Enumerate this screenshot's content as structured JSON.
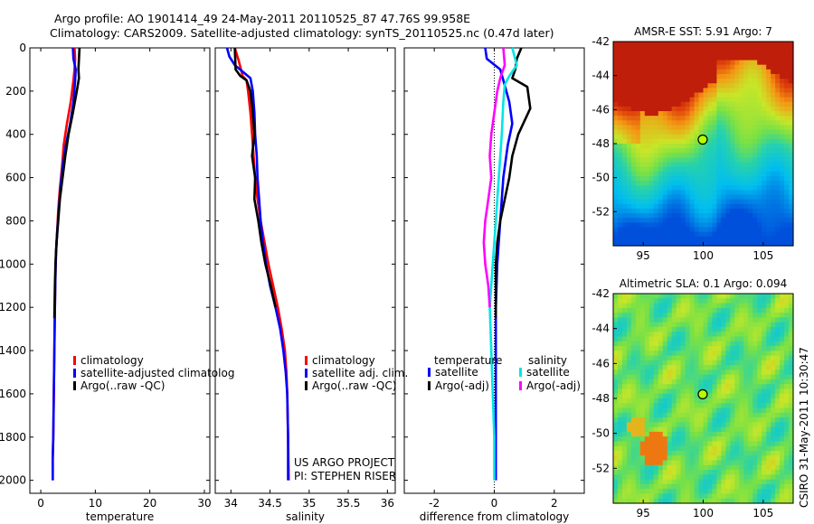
{
  "header": {
    "title_line1": "Argo profile: AO 1901414_49 24-May-2011 20110525_87 47.76S 99.958E",
    "title_line2": "Climatology: CARS2009. Satellite-adjusted climatology: synTS_20110525.nc (0.47d later)"
  },
  "credit": {
    "project": "US ARGO PROJECT",
    "pi": "PI: STEPHEN RISER",
    "stamp": "CSIRO 31-May-2011 10:30:47"
  },
  "colors": {
    "climatology": "#ff0000",
    "satellite": "#0000ff",
    "argo": "#000000",
    "salinity_satellite": "#00e5e5",
    "salinity_argo": "#ff00ff"
  },
  "chart_data": [
    {
      "type": "line",
      "id": "temperature",
      "xlabel": "temperature",
      "xlim": [
        -2,
        31
      ],
      "xticks": [
        0,
        10,
        20,
        30
      ],
      "ylim": [
        2060,
        0
      ],
      "yticks": [
        0,
        200,
        400,
        600,
        800,
        1000,
        1200,
        1400,
        1600,
        1800,
        2000
      ],
      "legend_position": "lower-left",
      "legend": [
        "climatology",
        "satellite-adjusted climatolog",
        "Argo(..raw -QC)"
      ],
      "series": [
        {
          "name": "climatology",
          "color": "#ff0000",
          "points": [
            [
              6.2,
              0
            ],
            [
              6.3,
              50
            ],
            [
              6.2,
              100
            ],
            [
              6.0,
              150
            ],
            [
              5.5,
              250
            ],
            [
              4.8,
              350
            ],
            [
              4.2,
              450
            ],
            [
              3.9,
              550
            ],
            [
              3.5,
              650
            ],
            [
              3.2,
              750
            ],
            [
              3.0,
              850
            ],
            [
              2.8,
              950
            ],
            [
              2.7,
              1050
            ],
            [
              2.6,
              1200
            ],
            [
              2.5,
              1400
            ],
            [
              2.4,
              1600
            ],
            [
              2.3,
              1800
            ],
            [
              2.2,
              1900
            ],
            [
              2.2,
              2000
            ]
          ]
        },
        {
          "name": "satellite-adjusted climatolog",
          "color": "#0000ff",
          "points": [
            [
              5.9,
              0
            ],
            [
              6.0,
              50
            ],
            [
              6.4,
              100
            ],
            [
              6.3,
              150
            ],
            [
              6.0,
              250
            ],
            [
              5.4,
              350
            ],
            [
              4.6,
              450
            ],
            [
              4.0,
              550
            ],
            [
              3.6,
              650
            ],
            [
              3.3,
              750
            ],
            [
              3.0,
              850
            ],
            [
              2.8,
              950
            ],
            [
              2.7,
              1050
            ],
            [
              2.6,
              1200
            ],
            [
              2.5,
              1400
            ],
            [
              2.4,
              1600
            ],
            [
              2.3,
              1800
            ],
            [
              2.2,
              1900
            ],
            [
              2.2,
              2000
            ]
          ]
        },
        {
          "name": "Argo(..raw -QC)",
          "color": "#000000",
          "points": [
            [
              7.1,
              0
            ],
            [
              7.0,
              50
            ],
            [
              6.9,
              100
            ],
            [
              7.0,
              140
            ],
            [
              6.6,
              200
            ],
            [
              5.9,
              300
            ],
            [
              5.1,
              400
            ],
            [
              4.5,
              500
            ],
            [
              4.0,
              600
            ],
            [
              3.5,
              700
            ],
            [
              3.2,
              800
            ],
            [
              2.9,
              900
            ],
            [
              2.7,
              1000
            ],
            [
              2.6,
              1100
            ],
            [
              2.5,
              1250
            ]
          ]
        }
      ]
    },
    {
      "type": "line",
      "id": "salinity",
      "xlabel": "salinity",
      "xlim": [
        33.8,
        36.1
      ],
      "xticks": [
        34,
        34.5,
        35,
        35.5,
        36
      ],
      "ylim": [
        2060,
        0
      ],
      "legend_position": "lower-left",
      "legend": [
        "climatology",
        "satellite adj. clim.",
        "Argo(..raw -QC)"
      ],
      "series": [
        {
          "name": "climatology",
          "color": "#ff0000",
          "points": [
            [
              34.05,
              0
            ],
            [
              34.1,
              60
            ],
            [
              34.15,
              130
            ],
            [
              34.2,
              150
            ],
            [
              34.22,
              200
            ],
            [
              34.25,
              300
            ],
            [
              34.27,
              400
            ],
            [
              34.29,
              500
            ],
            [
              34.31,
              600
            ],
            [
              34.34,
              700
            ],
            [
              34.38,
              800
            ],
            [
              34.43,
              900
            ],
            [
              34.48,
              1000
            ],
            [
              34.54,
              1100
            ],
            [
              34.6,
              1200
            ],
            [
              34.65,
              1300
            ],
            [
              34.69,
              1400
            ],
            [
              34.71,
              1500
            ],
            [
              34.72,
              1600
            ],
            [
              34.73,
              1800
            ],
            [
              34.74,
              2000
            ]
          ]
        },
        {
          "name": "satellite adj. clim.",
          "color": "#0000ff",
          "points": [
            [
              33.95,
              0
            ],
            [
              33.98,
              40
            ],
            [
              34.05,
              80
            ],
            [
              34.15,
              110
            ],
            [
              34.25,
              140
            ],
            [
              34.28,
              200
            ],
            [
              34.3,
              300
            ],
            [
              34.31,
              400
            ],
            [
              34.33,
              500
            ],
            [
              34.34,
              600
            ],
            [
              34.36,
              700
            ],
            [
              34.38,
              800
            ],
            [
              34.41,
              900
            ],
            [
              34.45,
              1000
            ],
            [
              34.5,
              1100
            ],
            [
              34.57,
              1200
            ],
            [
              34.63,
              1300
            ],
            [
              34.67,
              1400
            ],
            [
              34.7,
              1500
            ],
            [
              34.72,
              1600
            ],
            [
              34.73,
              1800
            ],
            [
              34.73,
              2000
            ]
          ]
        },
        {
          "name": "Argo(..raw -QC)",
          "color": "#000000",
          "points": [
            [
              34.05,
              0
            ],
            [
              34.06,
              100
            ],
            [
              34.12,
              130
            ],
            [
              34.2,
              150
            ],
            [
              34.25,
              200
            ],
            [
              34.28,
              300
            ],
            [
              34.3,
              400
            ],
            [
              34.27,
              500
            ],
            [
              34.31,
              600
            ],
            [
              34.3,
              700
            ],
            [
              34.35,
              800
            ],
            [
              34.39,
              900
            ],
            [
              34.44,
              1000
            ],
            [
              34.51,
              1100
            ],
            [
              34.57,
              1200
            ]
          ]
        }
      ]
    },
    {
      "type": "line",
      "id": "difference",
      "xlabel": "difference from climatology",
      "xlim": [
        -3,
        3
      ],
      "xticks": [
        -2,
        0,
        2
      ],
      "ylim": [
        2060,
        0
      ],
      "legend_position": "lower-center",
      "legend_groups": [
        "temperature",
        "salinity"
      ],
      "legend": [
        "satellite",
        "Argo(-adj)",
        "satellite",
        "Argo(-adj)"
      ],
      "series": [
        {
          "name": "satellite",
          "group": "temperature",
          "color": "#0000ff",
          "points": [
            [
              -0.3,
              0
            ],
            [
              -0.25,
              50
            ],
            [
              0.2,
              100
            ],
            [
              0.3,
              150
            ],
            [
              0.5,
              250
            ],
            [
              0.6,
              350
            ],
            [
              0.45,
              450
            ],
            [
              0.3,
              600
            ],
            [
              0.2,
              800
            ],
            [
              0.1,
              1000
            ],
            [
              0.05,
              1200
            ],
            [
              0.05,
              1400
            ],
            [
              0.05,
              1600
            ],
            [
              0.05,
              1800
            ],
            [
              0.05,
              2000
            ]
          ]
        },
        {
          "name": "Argo(-adj)",
          "group": "temperature",
          "color": "#000000",
          "points": [
            [
              0.9,
              0
            ],
            [
              0.75,
              50
            ],
            [
              0.7,
              100
            ],
            [
              0.6,
              140
            ],
            [
              1.1,
              180
            ],
            [
              1.2,
              280
            ],
            [
              0.8,
              400
            ],
            [
              0.6,
              500
            ],
            [
              0.5,
              600
            ],
            [
              0.35,
              700
            ],
            [
              0.2,
              800
            ],
            [
              0.1,
              900
            ],
            [
              0.05,
              1000
            ],
            [
              0.05,
              1250
            ]
          ]
        },
        {
          "name": "satellite",
          "group": "salinity",
          "color": "#00e5e5",
          "points": [
            [
              0.6,
              0
            ],
            [
              0.75,
              80
            ],
            [
              0.5,
              130
            ],
            [
              0.35,
              170
            ],
            [
              0.3,
              250
            ],
            [
              0.25,
              400
            ],
            [
              0.15,
              600
            ],
            [
              0.05,
              800
            ],
            [
              -0.05,
              1000
            ],
            [
              -0.15,
              1200
            ],
            [
              -0.1,
              1400
            ],
            [
              -0.05,
              1600
            ],
            [
              0,
              1800
            ],
            [
              0,
              2000
            ]
          ]
        },
        {
          "name": "Argo(-adj)",
          "group": "salinity",
          "color": "#ff00ff",
          "points": [
            [
              0.3,
              0
            ],
            [
              0.35,
              80
            ],
            [
              0.2,
              140
            ],
            [
              0.1,
              200
            ],
            [
              0.0,
              300
            ],
            [
              -0.1,
              400
            ],
            [
              -0.15,
              500
            ],
            [
              -0.1,
              600
            ],
            [
              -0.2,
              700
            ],
            [
              -0.3,
              800
            ],
            [
              -0.35,
              900
            ],
            [
              -0.3,
              1000
            ],
            [
              -0.2,
              1100
            ],
            [
              -0.15,
              1200
            ]
          ]
        }
      ]
    },
    {
      "type": "heatmap",
      "id": "sst-map",
      "title": "AMSR-E SST: 5.91  Argo: 7",
      "xlim": [
        92.5,
        107.5
      ],
      "ylim": [
        -54,
        -42
      ],
      "xticks": [
        95,
        100,
        105
      ],
      "yticks": [
        -42,
        -44,
        -46,
        -48,
        -50,
        -52
      ],
      "marker": {
        "lon": 99.958,
        "lat": -47.76
      }
    },
    {
      "type": "heatmap",
      "id": "sla-map",
      "title": "Altimetric SLA: 0.1  Argo: 0.094",
      "xlim": [
        92.5,
        107.5
      ],
      "ylim": [
        -54,
        -42
      ],
      "xticks": [
        95,
        100,
        105
      ],
      "yticks": [
        -42,
        -44,
        -46,
        -48,
        -50,
        -52
      ],
      "marker": {
        "lon": 99.958,
        "lat": -47.76
      }
    }
  ]
}
